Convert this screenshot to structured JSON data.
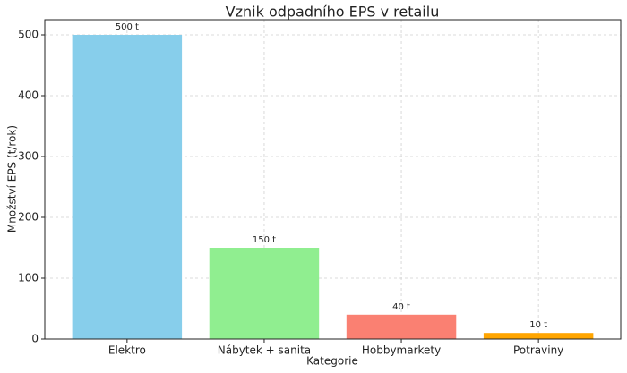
{
  "chart_data": {
    "type": "bar",
    "title": "Vznik odpadního EPS v retailu",
    "xlabel": "Kategorie",
    "ylabel": "Množství EPS (t/rok)",
    "categories": [
      "Elektro",
      "Nábytek + sanita",
      "Hobbymarkety",
      "Potraviny"
    ],
    "values": [
      500,
      150,
      40,
      10
    ],
    "value_labels": [
      "500 t",
      "150 t",
      "40 t",
      "10 t"
    ],
    "colors": [
      "#87ceeb",
      "#90ee90",
      "#fa8072",
      "#ffa500"
    ],
    "ylim": [
      0,
      525
    ],
    "yticks": [
      0,
      100,
      200,
      300,
      400,
      500
    ],
    "grid": true
  }
}
